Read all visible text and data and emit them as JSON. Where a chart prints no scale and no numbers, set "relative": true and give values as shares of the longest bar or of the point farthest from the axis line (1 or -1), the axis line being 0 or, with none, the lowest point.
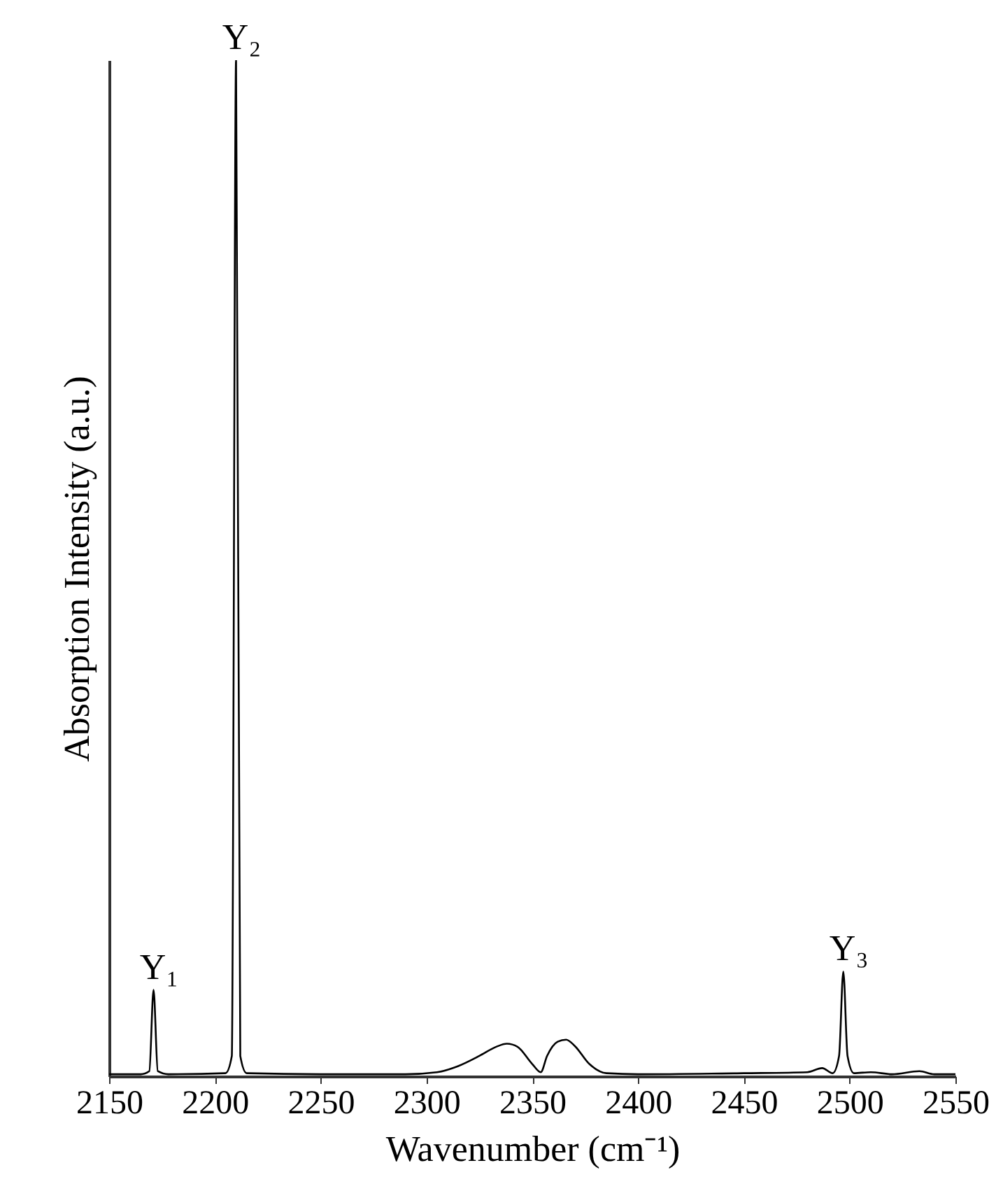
{
  "chart_data": {
    "type": "line",
    "relative": true,
    "xlabel": "Wavenumber (cm⁻¹)",
    "ylabel": "Absorption Intensity (a.u.)",
    "xlim": [
      2150,
      2550
    ],
    "xticks": [
      2150,
      2200,
      2250,
      2300,
      2350,
      2400,
      2450,
      2500,
      2550
    ],
    "grid": false,
    "legend": false,
    "marker": "none",
    "line_style": "solid",
    "series": [
      {
        "color": "#000000",
        "x": [
          2150,
          2165,
          2169,
          2171,
          2173,
          2178,
          2205,
          2208,
          2210,
          2212,
          2215,
          2250,
          2290,
          2305,
          2315,
          2325,
          2333,
          2338,
          2343,
          2350,
          2354,
          2357,
          2362,
          2366,
          2370,
          2377,
          2385,
          2400,
          2450,
          2480,
          2487,
          2492,
          2495,
          2497,
          2499,
          2502,
          2510,
          2520,
          2533,
          2540,
          2550
        ],
        "values": [
          0.002,
          0.002,
          0.005,
          0.085,
          0.005,
          0.002,
          0.003,
          0.02,
          1.0,
          0.02,
          0.003,
          0.002,
          0.002,
          0.004,
          0.01,
          0.02,
          0.029,
          0.032,
          0.029,
          0.012,
          0.004,
          0.02,
          0.034,
          0.036,
          0.03,
          0.012,
          0.003,
          0.002,
          0.003,
          0.004,
          0.008,
          0.003,
          0.02,
          0.103,
          0.02,
          0.003,
          0.004,
          0.002,
          0.005,
          0.002,
          0.002
        ]
      }
    ],
    "annotations": [
      {
        "text": "Y₁",
        "x": 2171,
        "y": 0.085
      },
      {
        "text": "Y₂",
        "x": 2210,
        "y": 1.0
      },
      {
        "text": "Y₃",
        "x": 2497,
        "y": 0.103
      }
    ]
  }
}
